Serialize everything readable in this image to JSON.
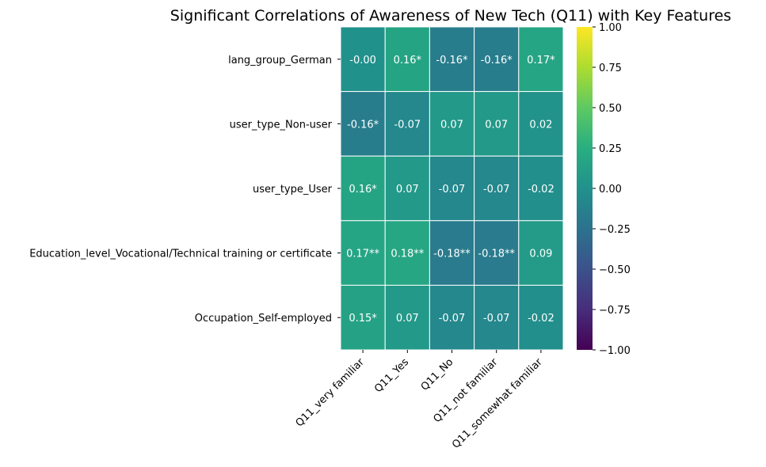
{
  "chart_data": {
    "type": "heatmap",
    "title": "Significant Correlations of Awareness of New Tech (Q11) with Key Features",
    "xlabel": "",
    "ylabel": "",
    "colormap": "viridis",
    "vmin": -1.0,
    "vmax": 1.0,
    "rows": [
      "lang_group_German",
      "user_type_Non-user",
      "user_type_User",
      "Education_level_Vocational/Technical training or certificate",
      "Occupation_Self-employed"
    ],
    "columns": [
      "Q11_very familiar",
      "Q11_Yes",
      "Q11_No",
      "Q11_not familiar",
      "Q11_somewhat familiar"
    ],
    "values": [
      [
        -0.0,
        0.16,
        -0.16,
        -0.16,
        0.17
      ],
      [
        -0.16,
        -0.07,
        0.07,
        0.07,
        0.02
      ],
      [
        0.16,
        0.07,
        -0.07,
        -0.07,
        -0.02
      ],
      [
        0.17,
        0.18,
        -0.18,
        -0.18,
        0.09
      ],
      [
        0.15,
        0.07,
        -0.07,
        -0.07,
        -0.02
      ]
    ],
    "annotations": [
      [
        "-0.00",
        "0.16*",
        "-0.16*",
        "-0.16*",
        "0.17*"
      ],
      [
        "-0.16*",
        "-0.07",
        "0.07",
        "0.07",
        "0.02"
      ],
      [
        "0.16*",
        "0.07",
        "-0.07",
        "-0.07",
        "-0.02"
      ],
      [
        "0.17**",
        "0.18**",
        "-0.18**",
        "-0.18**",
        "0.09"
      ],
      [
        "0.15*",
        "0.07",
        "-0.07",
        "-0.07",
        "-0.02"
      ]
    ],
    "colorbar_ticks": [
      "1.00",
      "0.75",
      "0.50",
      "0.25",
      "0.00",
      "−0.25",
      "−0.50",
      "−0.75",
      "−1.00"
    ],
    "colorbar_tick_values": [
      1.0,
      0.75,
      0.5,
      0.25,
      0.0,
      -0.25,
      -0.5,
      -0.75,
      -1.0
    ]
  }
}
